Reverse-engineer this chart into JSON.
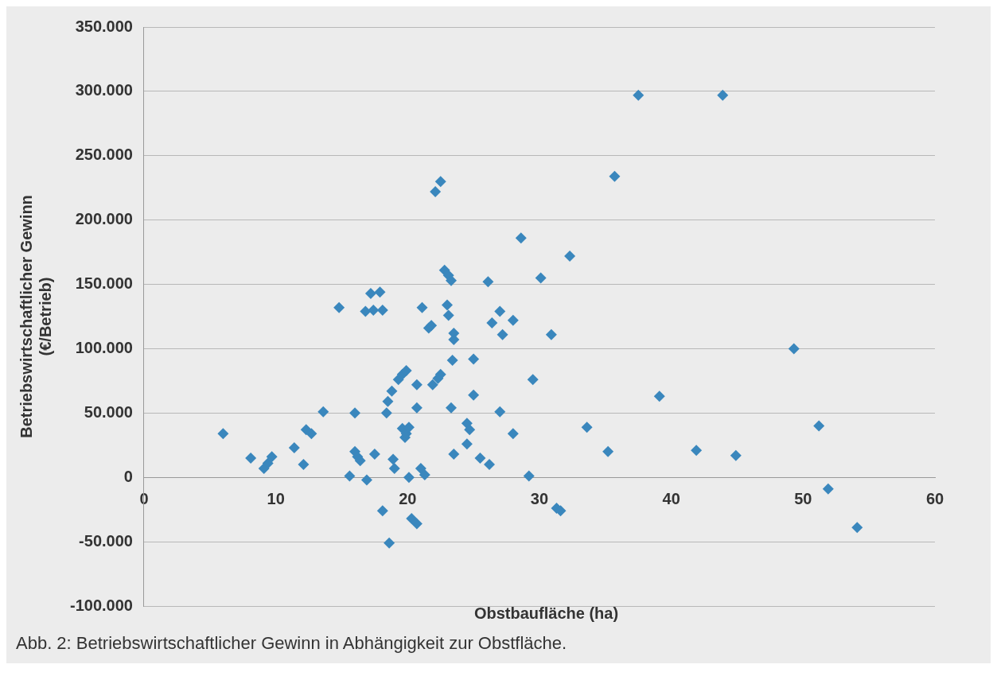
{
  "chart_data": {
    "type": "scatter",
    "xlabel": "Obstbaufläche (ha)",
    "ylabel": "Betriebswirtschaftlicher Gewinn\n(€/Betrieb)",
    "annotations": [
      "Abb. 2: Betriebswirtschaftlicher Gewinn in Abhängigkeit zur Obstfläche."
    ],
    "xlim": [
      0,
      60
    ],
    "xticks": [
      0,
      10,
      20,
      30,
      40,
      50,
      60
    ],
    "ylim": [
      -100000,
      350000
    ],
    "yticks": [
      {
        "value": -100000,
        "label": "-100.000"
      },
      {
        "value": -50000,
        "label": "-50.000"
      },
      0,
      {
        "value": 50000,
        "label": "50.000"
      },
      {
        "value": 100000,
        "label": "100.000"
      },
      {
        "value": 150000,
        "label": "150.000"
      },
      {
        "value": 200000,
        "label": "200.000"
      },
      {
        "value": 250000,
        "label": "250.000"
      },
      {
        "value": 300000,
        "label": "300.000"
      },
      {
        "value": 350000,
        "label": "350.000"
      }
    ],
    "grid": "y",
    "legend": false,
    "marker": "diamond",
    "series": [
      {
        "color": "#3a87bd",
        "x": [
          6.0,
          8.1,
          9.1,
          9.4,
          9.7,
          11.4,
          12.1,
          12.3,
          12.7,
          13.6,
          14.8,
          15.6,
          16.0,
          16.0,
          16.2,
          16.4,
          16.9,
          16.8,
          17.2,
          17.4,
          17.5,
          17.9,
          18.1,
          18.1,
          18.4,
          18.6,
          18.5,
          18.8,
          18.9,
          19.0,
          19.3,
          19.6,
          19.9,
          19.6,
          19.8,
          19.9,
          20.1,
          20.3,
          20.7,
          20.1,
          20.7,
          20.7,
          21.0,
          21.3,
          21.1,
          21.6,
          21.8,
          22.1,
          22.5,
          21.9,
          22.3,
          22.5,
          22.8,
          23.1,
          23.3,
          23.0,
          23.1,
          23.5,
          23.5,
          23.4,
          23.3,
          23.5,
          24.5,
          24.7,
          25.0,
          25.0,
          24.5,
          25.5,
          26.2,
          26.1,
          26.4,
          27.0,
          27.2,
          28.0,
          27.0,
          28.0,
          28.6,
          32.3,
          30.1,
          29.5,
          29.2,
          30.9,
          31.3,
          31.6,
          33.6,
          35.2,
          35.7,
          37.5,
          43.9,
          39.1,
          41.9,
          44.9,
          49.3,
          51.2,
          51.9,
          54.1
        ],
        "values": [
          34000,
          15000,
          7000,
          11000,
          16000,
          23000,
          10000,
          37000,
          34000,
          51000,
          132000,
          1000,
          20000,
          50000,
          16000,
          13000,
          -2000,
          129000,
          143000,
          130000,
          18000,
          144000,
          130000,
          -26000,
          50000,
          -51000,
          59000,
          67000,
          14000,
          7000,
          76000,
          80000,
          83000,
          38000,
          31000,
          34000,
          0,
          -32000,
          -36000,
          39000,
          72000,
          54000,
          7000,
          2000,
          132000,
          116000,
          118000,
          222000,
          230000,
          72000,
          77000,
          80000,
          161000,
          157000,
          153000,
          134000,
          126000,
          112000,
          107000,
          91000,
          54000,
          18000,
          42000,
          37000,
          92000,
          64000,
          26000,
          15000,
          10000,
          152000,
          120000,
          129000,
          111000,
          122000,
          51000,
          34000,
          186000,
          172000,
          155000,
          76000,
          1000,
          111000,
          -24000,
          -26000,
          39000,
          20000,
          234000,
          297000,
          297000,
          63000,
          21000,
          17000,
          100000,
          40000,
          -9000,
          -39000
        ]
      }
    ]
  }
}
